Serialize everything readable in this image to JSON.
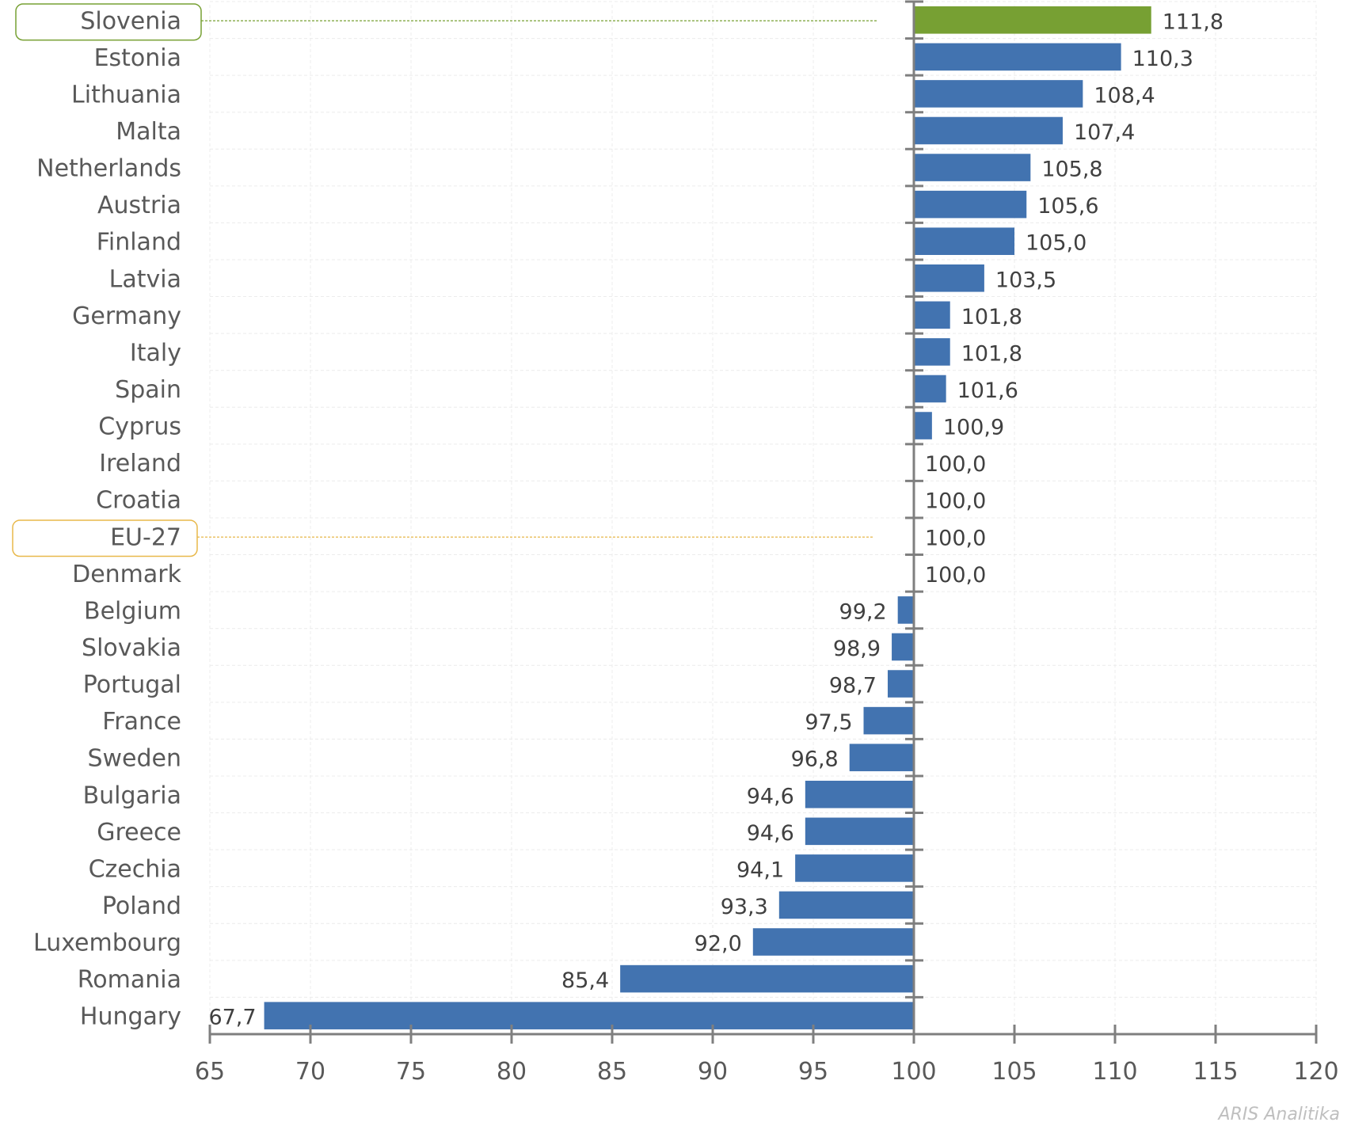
{
  "chart_data": {
    "type": "bar",
    "orientation": "horizontal",
    "title": "",
    "xlabel": "",
    "ylabel": "",
    "xlim": [
      65,
      120
    ],
    "baseline": 100,
    "x_ticks": [
      65,
      70,
      75,
      80,
      85,
      90,
      95,
      100,
      105,
      110,
      115,
      120
    ],
    "x_tick_labels": [
      "65",
      "70",
      "75",
      "80",
      "85",
      "90",
      "95",
      "100",
      "105",
      "110",
      "115",
      "120"
    ],
    "grid": true,
    "categories": [
      "Slovenia",
      "Estonia",
      "Lithuania",
      "Malta",
      "Netherlands",
      "Austria",
      "Finland",
      "Latvia",
      "Germany",
      "Italy",
      "Spain",
      "Cyprus",
      "Ireland",
      "Croatia",
      "EU-27",
      "Denmark",
      "Belgium",
      "Slovakia",
      "Portugal",
      "France",
      "Sweden",
      "Bulgaria",
      "Greece",
      "Czechia",
      "Poland",
      "Luxembourg",
      "Romania",
      "Hungary"
    ],
    "values": [
      111.8,
      110.3,
      108.4,
      107.4,
      105.8,
      105.6,
      105.0,
      103.5,
      101.8,
      101.8,
      101.6,
      100.9,
      100.0,
      100.0,
      100.0,
      100.0,
      99.2,
      98.9,
      98.7,
      97.5,
      96.8,
      94.6,
      94.6,
      94.1,
      93.3,
      92.0,
      85.4,
      67.7
    ],
    "value_labels": [
      "111,8",
      "110,3",
      "108,4",
      "107,4",
      "105,8",
      "105,6",
      "105,0",
      "103,5",
      "101,8",
      "101,8",
      "101,6",
      "100,9",
      "100,0",
      "100,0",
      "100,0",
      "100,0",
      "99,2",
      "98,9",
      "98,7",
      "97,5",
      "96,8",
      "94,6",
      "94,6",
      "94,1",
      "93,3",
      "92,0",
      "85,4",
      "67,7"
    ],
    "highlighted": {
      "Slovenia": "#77a033",
      "EU-27": "#e8b84a"
    },
    "colors": {
      "bar": "#4273b0",
      "highlight_bar": "#77a033",
      "axis": "#7f7f7f",
      "grid": "#ececec"
    }
  },
  "watermark": "ARIS Analitika"
}
